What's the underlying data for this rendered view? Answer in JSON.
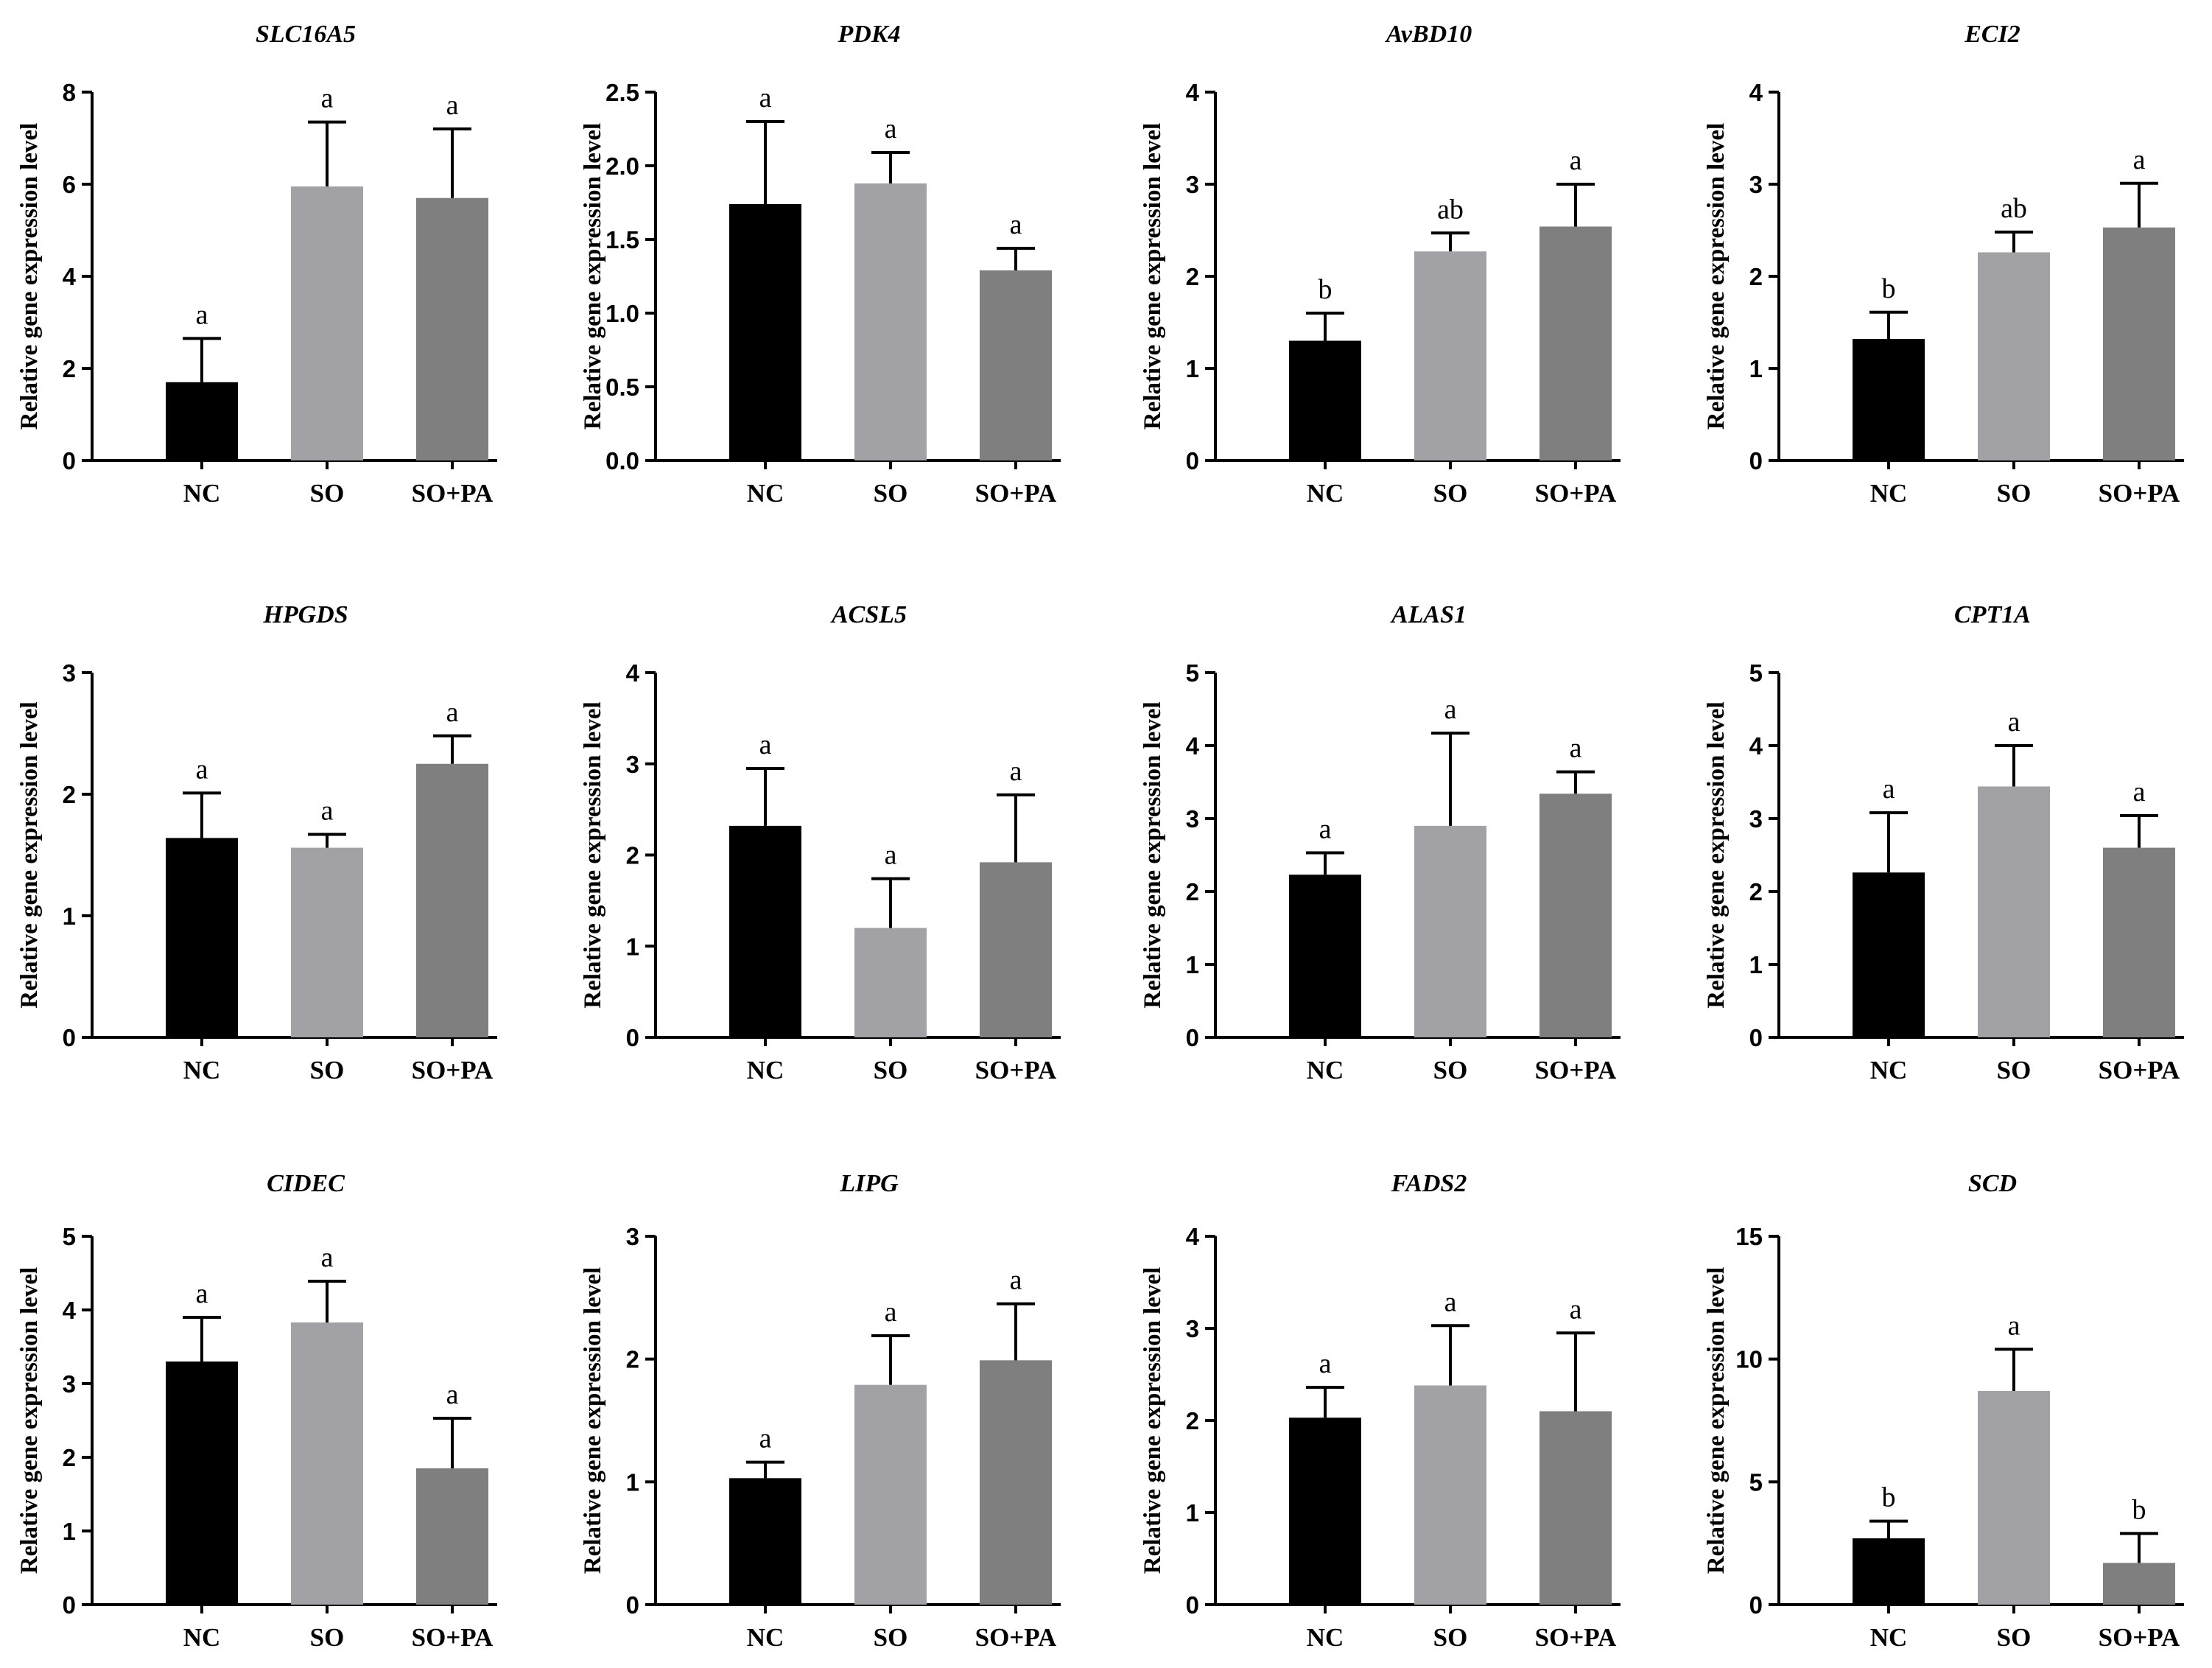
{
  "chart_data": [
    {
      "type": "bar",
      "title": "SLC16A5",
      "ylabel": "Relative gene expression level",
      "categories": [
        "NC",
        "SO",
        "SO+PA"
      ],
      "values": [
        1.7,
        5.95,
        5.7
      ],
      "errors": [
        0.95,
        1.4,
        1.5
      ],
      "letters": [
        "a",
        "a",
        "a"
      ],
      "ylim": [
        0,
        8
      ],
      "yticks": [
        "0",
        "2",
        "4",
        "6",
        "8"
      ],
      "colors": [
        "#000000",
        "#a2a1a6",
        "#7f7f7f"
      ]
    },
    {
      "type": "bar",
      "title": "PDK4",
      "ylabel": "Relative gene expression level",
      "categories": [
        "NC",
        "SO",
        "SO+PA"
      ],
      "values": [
        1.74,
        1.88,
        1.29
      ],
      "errors": [
        0.56,
        0.21,
        0.15
      ],
      "letters": [
        "a",
        "a",
        "a"
      ],
      "ylim": [
        0,
        2.5
      ],
      "yticks": [
        "0.0",
        "0.5",
        "1.0",
        "1.5",
        "2.0",
        "2.5"
      ],
      "colors": [
        "#000000",
        "#a2a1a6",
        "#7f7f7f"
      ]
    },
    {
      "type": "bar",
      "title": "AvBD10",
      "ylabel": "Relative gene expression level",
      "categories": [
        "NC",
        "SO",
        "SO+PA"
      ],
      "values": [
        1.3,
        2.27,
        2.54
      ],
      "errors": [
        0.3,
        0.2,
        0.46
      ],
      "letters": [
        "b",
        "ab",
        "a"
      ],
      "ylim": [
        0,
        4
      ],
      "yticks": [
        "0",
        "1",
        "2",
        "3",
        "4"
      ],
      "colors": [
        "#000000",
        "#a2a1a6",
        "#7f7f7f"
      ]
    },
    {
      "type": "bar",
      "title": "ECI2",
      "ylabel": "Relative gene expression level",
      "categories": [
        "NC",
        "SO",
        "SO+PA"
      ],
      "values": [
        1.32,
        2.26,
        2.53
      ],
      "errors": [
        0.29,
        0.22,
        0.48
      ],
      "letters": [
        "b",
        "ab",
        "a"
      ],
      "ylim": [
        0,
        4
      ],
      "yticks": [
        "0",
        "1",
        "2",
        "3",
        "4"
      ],
      "colors": [
        "#000000",
        "#a2a1a6",
        "#7f7f7f"
      ]
    },
    {
      "type": "bar",
      "title": "HPGDS",
      "ylabel": "Relative gene expression level",
      "categories": [
        "NC",
        "SO",
        "SO+PA"
      ],
      "values": [
        1.64,
        1.56,
        2.25
      ],
      "errors": [
        0.37,
        0.11,
        0.23
      ],
      "letters": [
        "a",
        "a",
        "a"
      ],
      "ylim": [
        0,
        3
      ],
      "yticks": [
        "0",
        "1",
        "2",
        "3"
      ],
      "colors": [
        "#000000",
        "#a2a1a6",
        "#7f7f7f"
      ]
    },
    {
      "type": "bar",
      "title": "ACSL5",
      "ylabel": "Relative gene expression level",
      "categories": [
        "NC",
        "SO",
        "SO+PA"
      ],
      "values": [
        2.32,
        1.2,
        1.92
      ],
      "errors": [
        0.63,
        0.54,
        0.74
      ],
      "letters": [
        "a",
        "a",
        "a"
      ],
      "ylim": [
        0,
        4
      ],
      "yticks": [
        "0",
        "1",
        "2",
        "3",
        "4"
      ],
      "colors": [
        "#000000",
        "#a2a1a6",
        "#7f7f7f"
      ]
    },
    {
      "type": "bar",
      "title": "ALAS1",
      "ylabel": "Relative gene expression level",
      "categories": [
        "NC",
        "SO",
        "SO+PA"
      ],
      "values": [
        2.23,
        2.9,
        3.34
      ],
      "errors": [
        0.3,
        1.27,
        0.3
      ],
      "letters": [
        "a",
        "a",
        "a"
      ],
      "ylim": [
        0,
        5
      ],
      "yticks": [
        "0",
        "1",
        "2",
        "3",
        "4",
        "5"
      ],
      "colors": [
        "#000000",
        "#a2a1a6",
        "#7f7f7f"
      ]
    },
    {
      "type": "bar",
      "title": "CPT1A",
      "ylabel": "Relative gene expression level",
      "categories": [
        "NC",
        "SO",
        "SO+PA"
      ],
      "values": [
        2.26,
        3.44,
        2.6
      ],
      "errors": [
        0.82,
        0.56,
        0.44
      ],
      "letters": [
        "a",
        "a",
        "a"
      ],
      "ylim": [
        0,
        5
      ],
      "yticks": [
        "0",
        "1",
        "2",
        "3",
        "4",
        "5"
      ],
      "colors": [
        "#000000",
        "#a2a1a6",
        "#7f7f7f"
      ]
    },
    {
      "type": "bar",
      "title": "CIDEC",
      "ylabel": "Relative gene expression level",
      "categories": [
        "NC",
        "SO",
        "SO+PA"
      ],
      "values": [
        3.3,
        3.83,
        1.85
      ],
      "errors": [
        0.6,
        0.56,
        0.68
      ],
      "letters": [
        "a",
        "a",
        "a"
      ],
      "ylim": [
        0,
        5
      ],
      "yticks": [
        "0",
        "1",
        "2",
        "3",
        "4",
        "5"
      ],
      "colors": [
        "#000000",
        "#a2a1a6",
        "#7f7f7f"
      ]
    },
    {
      "type": "bar",
      "title": "LIPG",
      "ylabel": "Relative gene expression level",
      "categories": [
        "NC",
        "SO",
        "SO+PA"
      ],
      "values": [
        1.03,
        1.79,
        1.99
      ],
      "errors": [
        0.13,
        0.4,
        0.46
      ],
      "letters": [
        "a",
        "a",
        "a"
      ],
      "ylim": [
        0,
        3
      ],
      "yticks": [
        "0",
        "1",
        "2",
        "3"
      ],
      "colors": [
        "#000000",
        "#a2a1a6",
        "#7f7f7f"
      ]
    },
    {
      "type": "bar",
      "title": "FADS2",
      "ylabel": "Relative gene expression level",
      "categories": [
        "NC",
        "SO",
        "SO+PA"
      ],
      "values": [
        2.03,
        2.38,
        2.1
      ],
      "errors": [
        0.33,
        0.65,
        0.85
      ],
      "letters": [
        "a",
        "a",
        "a"
      ],
      "ylim": [
        0,
        4
      ],
      "yticks": [
        "0",
        "1",
        "2",
        "3",
        "4"
      ],
      "colors": [
        "#000000",
        "#a2a1a6",
        "#7f7f7f"
      ]
    },
    {
      "type": "bar",
      "title": "SCD",
      "ylabel": "Relative gene expression level",
      "categories": [
        "NC",
        "SO",
        "SO+PA"
      ],
      "values": [
        2.7,
        8.7,
        1.7
      ],
      "errors": [
        0.7,
        1.7,
        1.2
      ],
      "letters": [
        "b",
        "a",
        "b"
      ],
      "ylim": [
        0,
        15
      ],
      "yticks": [
        "0",
        "5",
        "10",
        "15"
      ],
      "colors": [
        "#000000",
        "#a2a1a6",
        "#7f7f7f"
      ]
    }
  ]
}
